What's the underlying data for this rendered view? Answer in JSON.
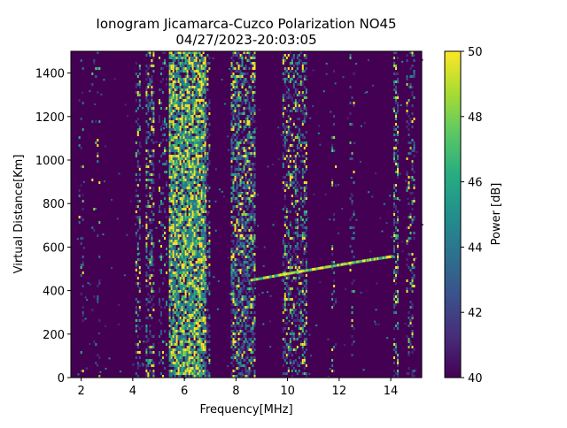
{
  "chart_data": {
    "type": "heatmap",
    "title": "Ionogram Jicamarca-Cuzco Polarization NO45",
    "subtitle": "04/27/2023-20:03:05",
    "xlabel": "Frequency[MHz]",
    "ylabel": "Virtual Distance[Km]",
    "xlim": [
      1.6,
      15.2
    ],
    "ylim": [
      0,
      1500
    ],
    "x_ticks": [
      2,
      4,
      6,
      8,
      10,
      12,
      14
    ],
    "y_ticks": [
      0,
      200,
      400,
      600,
      800,
      1000,
      1200,
      1400
    ],
    "colorbar": {
      "label": "Power [dB]",
      "range": [
        40,
        50
      ],
      "ticks": [
        40,
        42,
        44,
        46,
        48,
        50
      ],
      "colormap": [
        "#440154",
        "#472c7a",
        "#3b518b",
        "#2c718e",
        "#21908d",
        "#27ad81",
        "#5cc863",
        "#aadc32",
        "#fde725"
      ]
    },
    "grid": false,
    "bands": [
      {
        "f_start": 1.9,
        "f_end": 2.1,
        "intensity": 0.1
      },
      {
        "f_start": 2.4,
        "f_end": 2.7,
        "intensity": 0.08
      },
      {
        "f_start": 4.1,
        "f_end": 4.3,
        "intensity": 0.35
      },
      {
        "f_start": 4.5,
        "f_end": 4.8,
        "intensity": 0.4
      },
      {
        "f_start": 5.0,
        "f_end": 5.3,
        "intensity": 0.2
      },
      {
        "f_start": 5.4,
        "f_end": 6.8,
        "intensity": 0.85
      },
      {
        "f_start": 6.8,
        "f_end": 7.0,
        "intensity": 0.35
      },
      {
        "f_start": 7.8,
        "f_end": 8.7,
        "intensity": 0.6
      },
      {
        "f_start": 9.8,
        "f_end": 10.7,
        "intensity": 0.4
      },
      {
        "f_start": 11.7,
        "f_end": 11.9,
        "intensity": 0.1
      },
      {
        "f_start": 12.4,
        "f_end": 12.6,
        "intensity": 0.12
      },
      {
        "f_start": 14.1,
        "f_end": 14.3,
        "intensity": 0.45
      },
      {
        "f_start": 14.6,
        "f_end": 14.9,
        "intensity": 0.25
      }
    ],
    "trace": [
      {
        "f": 8.6,
        "d": 450
      },
      {
        "f": 10.0,
        "d": 480
      },
      {
        "f": 11.5,
        "d": 510
      },
      {
        "f": 13.0,
        "d": 540
      },
      {
        "f": 14.1,
        "d": 560
      }
    ]
  }
}
